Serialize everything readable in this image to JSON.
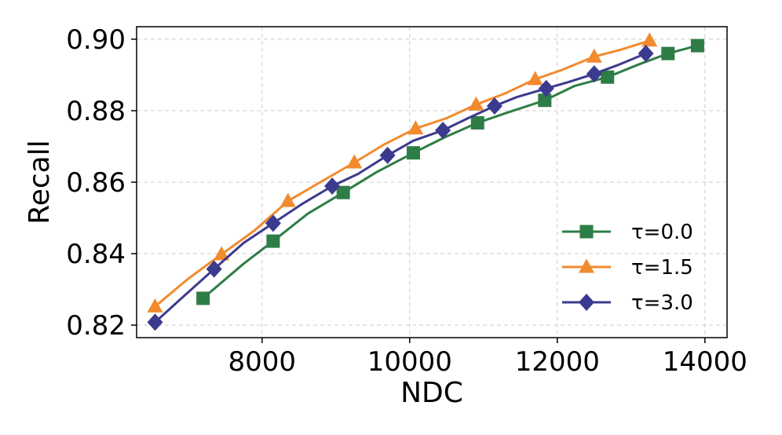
{
  "chart_data": {
    "type": "line",
    "title": "",
    "xlabel": "NDC",
    "ylabel": "Recall",
    "xlim": [
      6300,
      14300
    ],
    "ylim": [
      0.8165,
      0.9035
    ],
    "xticks": [
      8000,
      10000,
      12000,
      14000
    ],
    "yticks": [
      0.82,
      0.84,
      0.86,
      0.88,
      0.9
    ],
    "xtick_labels": [
      "8000",
      "10000",
      "12000",
      "14000"
    ],
    "ytick_labels": [
      "0.82",
      "0.84",
      "0.86",
      "0.88",
      "0.90"
    ],
    "grid": true,
    "legend_position": "lower-right",
    "series": [
      {
        "name": "τ=0.0",
        "color": "#2e7d46",
        "marker": "square",
        "line_points": [
          {
            "x": 7200,
            "y": 0.8275
          },
          {
            "x": 7750,
            "y": 0.8372
          },
          {
            "x": 8150,
            "y": 0.8435
          },
          {
            "x": 8620,
            "y": 0.8512
          },
          {
            "x": 9100,
            "y": 0.8571
          },
          {
            "x": 9550,
            "y": 0.8628
          },
          {
            "x": 10050,
            "y": 0.8682
          },
          {
            "x": 10480,
            "y": 0.8726
          },
          {
            "x": 10920,
            "y": 0.8766
          },
          {
            "x": 11330,
            "y": 0.8795
          },
          {
            "x": 11830,
            "y": 0.8829
          },
          {
            "x": 12230,
            "y": 0.8869
          },
          {
            "x": 12680,
            "y": 0.8894
          },
          {
            "x": 13100,
            "y": 0.8929
          },
          {
            "x": 13500,
            "y": 0.896
          },
          {
            "x": 13900,
            "y": 0.8982
          }
        ],
        "marker_points": [
          {
            "x": 7200,
            "y": 0.8275
          },
          {
            "x": 8150,
            "y": 0.8435
          },
          {
            "x": 9100,
            "y": 0.8571
          },
          {
            "x": 10050,
            "y": 0.8682
          },
          {
            "x": 10920,
            "y": 0.8766
          },
          {
            "x": 11830,
            "y": 0.8829
          },
          {
            "x": 12680,
            "y": 0.8894
          },
          {
            "x": 13500,
            "y": 0.896
          },
          {
            "x": 13900,
            "y": 0.8982
          }
        ]
      },
      {
        "name": "τ=1.5",
        "color": "#f28a2e",
        "marker": "triangle",
        "line_points": [
          {
            "x": 6550,
            "y": 0.8252
          },
          {
            "x": 7000,
            "y": 0.833
          },
          {
            "x": 7450,
            "y": 0.8398
          },
          {
            "x": 7900,
            "y": 0.8465
          },
          {
            "x": 8350,
            "y": 0.8547
          },
          {
            "x": 8780,
            "y": 0.8599
          },
          {
            "x": 9250,
            "y": 0.8655
          },
          {
            "x": 9650,
            "y": 0.8705
          },
          {
            "x": 10080,
            "y": 0.875
          },
          {
            "x": 10500,
            "y": 0.8779
          },
          {
            "x": 10900,
            "y": 0.8817
          },
          {
            "x": 11300,
            "y": 0.8849
          },
          {
            "x": 11700,
            "y": 0.8888
          },
          {
            "x": 12050,
            "y": 0.8913
          },
          {
            "x": 12500,
            "y": 0.8951
          },
          {
            "x": 12850,
            "y": 0.897
          },
          {
            "x": 13250,
            "y": 0.8996
          }
        ],
        "marker_points": [
          {
            "x": 6550,
            "y": 0.8252
          },
          {
            "x": 7450,
            "y": 0.8398
          },
          {
            "x": 8350,
            "y": 0.8547
          },
          {
            "x": 9250,
            "y": 0.8655
          },
          {
            "x": 10080,
            "y": 0.875
          },
          {
            "x": 10900,
            "y": 0.8817
          },
          {
            "x": 11700,
            "y": 0.8888
          },
          {
            "x": 12500,
            "y": 0.8951
          },
          {
            "x": 13250,
            "y": 0.8996
          }
        ]
      },
      {
        "name": "τ=3.0",
        "color": "#3c3a8e",
        "marker": "diamond",
        "line_points": [
          {
            "x": 6550,
            "y": 0.8208
          },
          {
            "x": 6950,
            "y": 0.8283
          },
          {
            "x": 7350,
            "y": 0.8357
          },
          {
            "x": 7750,
            "y": 0.843
          },
          {
            "x": 8150,
            "y": 0.8485
          },
          {
            "x": 8550,
            "y": 0.854
          },
          {
            "x": 8950,
            "y": 0.8589
          },
          {
            "x": 9300,
            "y": 0.8623
          },
          {
            "x": 9700,
            "y": 0.8675
          },
          {
            "x": 10050,
            "y": 0.8716
          },
          {
            "x": 10450,
            "y": 0.8745
          },
          {
            "x": 10800,
            "y": 0.878
          },
          {
            "x": 11150,
            "y": 0.8813
          },
          {
            "x": 11450,
            "y": 0.8838
          },
          {
            "x": 11850,
            "y": 0.8862
          },
          {
            "x": 12150,
            "y": 0.888
          },
          {
            "x": 12500,
            "y": 0.8903
          },
          {
            "x": 12850,
            "y": 0.893
          },
          {
            "x": 13200,
            "y": 0.896
          }
        ],
        "marker_points": [
          {
            "x": 6550,
            "y": 0.8208
          },
          {
            "x": 7350,
            "y": 0.8357
          },
          {
            "x": 8150,
            "y": 0.8485
          },
          {
            "x": 8950,
            "y": 0.8589
          },
          {
            "x": 9700,
            "y": 0.8675
          },
          {
            "x": 10450,
            "y": 0.8745
          },
          {
            "x": 11150,
            "y": 0.8813
          },
          {
            "x": 11850,
            "y": 0.8862
          },
          {
            "x": 12500,
            "y": 0.8903
          },
          {
            "x": 13200,
            "y": 0.896
          }
        ]
      }
    ]
  },
  "legend": [
    {
      "label": "τ=0.0",
      "color": "#2e7d46",
      "marker": "square"
    },
    {
      "label": "τ=1.5",
      "color": "#f28a2e",
      "marker": "triangle"
    },
    {
      "label": "τ=3.0",
      "color": "#3c3a8e",
      "marker": "diamond"
    }
  ]
}
